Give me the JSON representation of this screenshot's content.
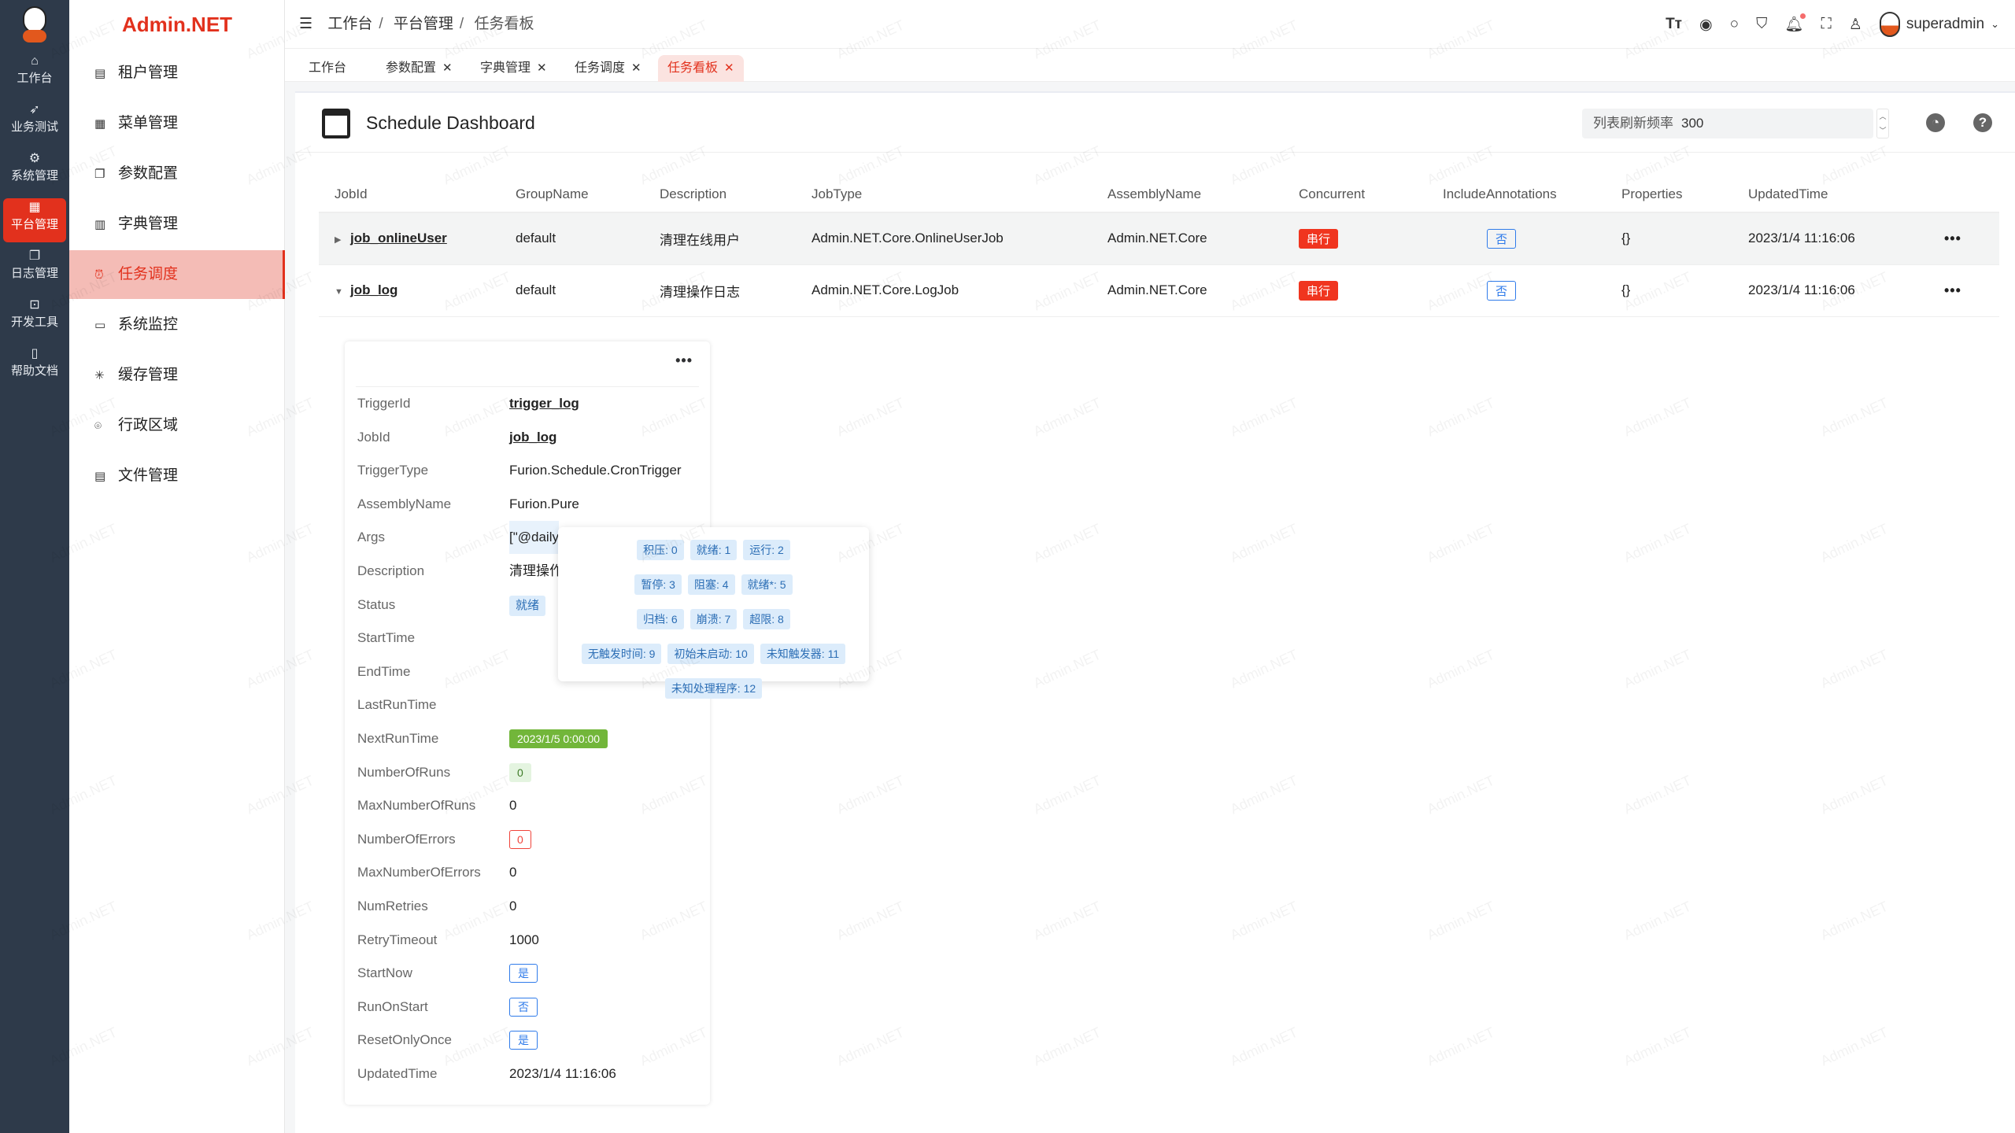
{
  "brand": "Admin.NET",
  "rail": [
    {
      "label": "工作台",
      "icon": "home-icon"
    },
    {
      "label": "业务测试",
      "icon": "send-icon"
    },
    {
      "label": "系统管理",
      "icon": "gear-icon"
    },
    {
      "label": "平台管理",
      "icon": "grid-icon",
      "active": true
    },
    {
      "label": "日志管理",
      "icon": "copy-icon"
    },
    {
      "label": "开发工具",
      "icon": "chip-icon"
    },
    {
      "label": "帮助文档",
      "icon": "notebook-icon"
    }
  ],
  "menu": [
    {
      "label": "租户管理",
      "icon": "tenant-icon"
    },
    {
      "label": "菜单管理",
      "icon": "grid-icon"
    },
    {
      "label": "参数配置",
      "icon": "copy-icon"
    },
    {
      "label": "字典管理",
      "icon": "dictionary-icon"
    },
    {
      "label": "任务调度",
      "icon": "alarm-clock-icon",
      "active": true
    },
    {
      "label": "系统监控",
      "icon": "monitor-icon"
    },
    {
      "label": "缓存管理",
      "icon": "loading-icon"
    },
    {
      "label": "行政区域",
      "icon": "location-icon"
    },
    {
      "label": "文件管理",
      "icon": "document-icon"
    }
  ],
  "breadcrumb": [
    "工作台",
    "平台管理",
    "任务看板"
  ],
  "user": {
    "name": "superadmin"
  },
  "tabs": [
    {
      "label": "工作台",
      "closable": false
    },
    {
      "label": "参数配置",
      "closable": true
    },
    {
      "label": "字典管理",
      "closable": true
    },
    {
      "label": "任务调度",
      "closable": true
    },
    {
      "label": "任务看板",
      "closable": true,
      "active": true
    }
  ],
  "page": {
    "title": "Schedule Dashboard",
    "refresh_label": "列表刷新频率",
    "refresh_value": "300"
  },
  "table": {
    "columns": [
      "JobId",
      "GroupName",
      "Description",
      "JobType",
      "AssemblyName",
      "Concurrent",
      "IncludeAnnotations",
      "Properties",
      "UpdatedTime"
    ],
    "rows": [
      {
        "JobId": "job_onlineUser",
        "GroupName": "default",
        "Description": "清理在线用户",
        "JobType": "Admin.NET.Core.OnlineUserJob",
        "AssemblyName": "Admin.NET.Core",
        "Concurrent": "串行",
        "IncludeAnnotations": "否",
        "Properties": "{}",
        "UpdatedTime": "2023/1/4 11:16:06",
        "expanded": false
      },
      {
        "JobId": "job_log",
        "GroupName": "default",
        "Description": "清理操作日志",
        "JobType": "Admin.NET.Core.LogJob",
        "AssemblyName": "Admin.NET.Core",
        "Concurrent": "串行",
        "IncludeAnnotations": "否",
        "Properties": "{}",
        "UpdatedTime": "2023/1/4 11:16:06",
        "expanded": true
      }
    ]
  },
  "trigger": [
    {
      "label": "TriggerId",
      "value": "trigger_log",
      "style": "link"
    },
    {
      "label": "JobId",
      "value": "job_log",
      "style": "link"
    },
    {
      "label": "TriggerType",
      "value": "Furion.Schedule.CronTrigger"
    },
    {
      "label": "AssemblyName",
      "value": "Furion.Pure"
    },
    {
      "label": "Args",
      "value": "[\"@daily"
    },
    {
      "label": "Description",
      "value": "清理操作"
    },
    {
      "label": "Status",
      "value": "就绪",
      "style": "lightblue"
    },
    {
      "label": "StartTime",
      "value": ""
    },
    {
      "label": "EndTime",
      "value": ""
    },
    {
      "label": "LastRunTime",
      "value": ""
    },
    {
      "label": "NextRunTime",
      "value": "2023/1/5 0:00:00",
      "style": "green"
    },
    {
      "label": "NumberOfRuns",
      "value": "0",
      "style": "lightgreen"
    },
    {
      "label": "MaxNumberOfRuns",
      "value": "0"
    },
    {
      "label": "NumberOfErrors",
      "value": "0",
      "style": "redoutline"
    },
    {
      "label": "MaxNumberOfErrors",
      "value": "0"
    },
    {
      "label": "NumRetries",
      "value": "0"
    },
    {
      "label": "RetryTimeout",
      "value": "1000"
    },
    {
      "label": "StartNow",
      "value": "是",
      "style": "blueoutline"
    },
    {
      "label": "RunOnStart",
      "value": "否",
      "style": "blueoutline"
    },
    {
      "label": "ResetOnlyOnce",
      "value": "是",
      "style": "blueoutline"
    },
    {
      "label": "UpdatedTime",
      "value": "2023/1/4 11:16:06"
    }
  ],
  "status_legend": [
    "积压: 0",
    "就绪: 1",
    "运行: 2",
    "暂停: 3",
    "阻塞: 4",
    "就绪*: 5",
    "归档: 6",
    "崩溃: 7",
    "超限: 8",
    "无触发时间: 9",
    "初始未启动: 10",
    "未知触发器: 11",
    "未知处理程序: 12"
  ],
  "watermark": "Admin.NET",
  "colors": {
    "accent": "#e2311d",
    "rail_bg": "#2e3a4a",
    "active_menu_bg": "#f4bcb6"
  }
}
